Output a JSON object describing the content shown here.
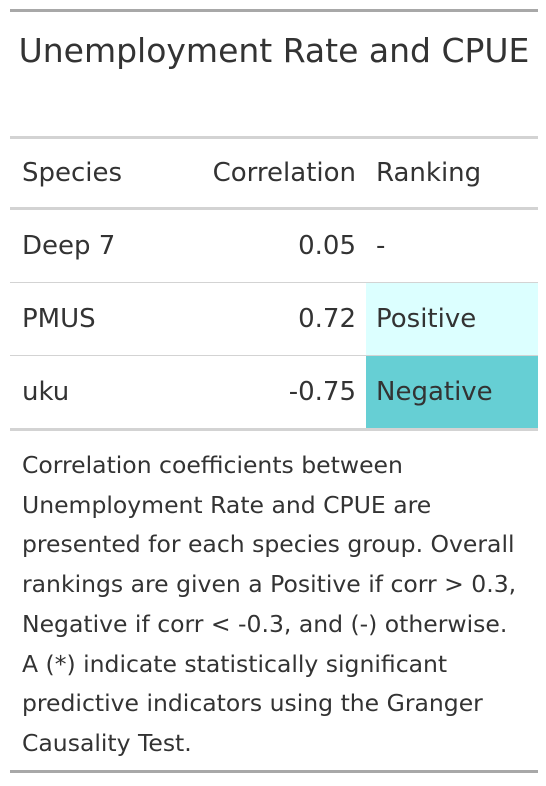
{
  "table": {
    "title": "Unemployment Rate and CPUE",
    "columns": {
      "species": "Species",
      "correlation": "Correlation",
      "ranking": "Ranking"
    },
    "rows": [
      {
        "species": "Deep 7",
        "correlation": "0.05",
        "ranking": "-",
        "ranking_color": "#ffffff"
      },
      {
        "species": "PMUS",
        "correlation": "0.72",
        "ranking": "Positive",
        "ranking_color": "#dcffff"
      },
      {
        "species": "uku",
        "correlation": "-0.75",
        "ranking": "Negative",
        "ranking_color": "#66cfd4"
      }
    ],
    "footnote": "Correlation coefficients between Unemployment Rate and CPUE are presented for each species group. Overall rankings are given a Positive if corr > 0.3, Negative if corr < -0.3, and (-) otherwise. A (*) indicate statistically significant predictive indicators using the Granger Causality Test."
  }
}
